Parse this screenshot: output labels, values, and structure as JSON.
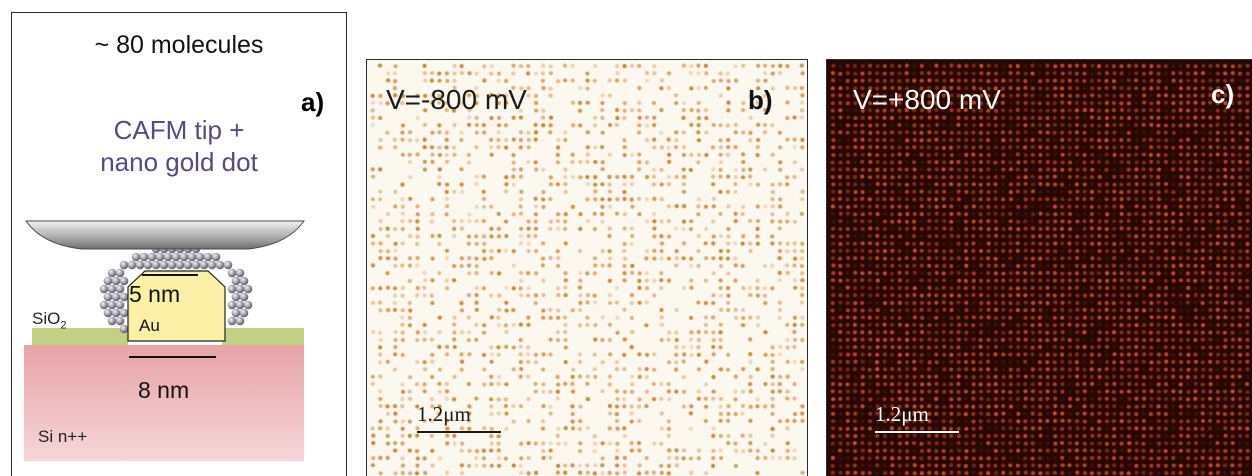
{
  "figure": {
    "panel_a": {
      "letter": "a)",
      "molecule_count": "~ 80 molecules",
      "probe_line1": "CAFM tip +",
      "probe_line2": "nano gold dot",
      "dot_size": "5 nm",
      "dot_material": "Au",
      "oxide_label": "SiO",
      "oxide_subscript": "2",
      "gap_size": "8 nm",
      "substrate_label": "Si n++"
    },
    "panel_b": {
      "letter": "b)",
      "voltage": "V=-800 mV",
      "scale_bar": "1.2μm",
      "dot_color": "#c8812e",
      "background_color": "#fbf8ef"
    },
    "panel_c": {
      "letter": "c)",
      "voltage": "V=+800 mV",
      "scale_bar": "1.2μm",
      "dot_color": "#d84a1c",
      "background_color": "#250703"
    }
  }
}
